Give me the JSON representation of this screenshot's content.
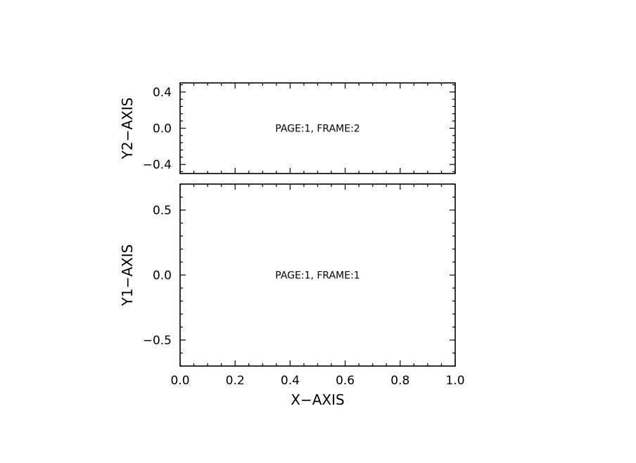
{
  "colors": {
    "background": "#ffffff",
    "axes": "#000000",
    "text": "#000000"
  },
  "chart_data": [
    {
      "type": "line",
      "frame": "top",
      "title": "",
      "xlabel": "",
      "ylabel": "Y2−AXIS",
      "xlim": [
        0.0,
        1.0
      ],
      "ylim": [
        -0.5,
        0.5
      ],
      "x_ticks": [
        0.0,
        0.2,
        0.4,
        0.6,
        0.8,
        1.0
      ],
      "x_tick_labels": [],
      "y_ticks": [
        -0.4,
        0.0,
        0.4
      ],
      "y_tick_labels": [
        "−0.4",
        "0.0",
        "0.4"
      ],
      "annotation": {
        "text": "PAGE:1, FRAME:2",
        "x": 0.5,
        "y": 0.0
      },
      "series": [],
      "grid": false
    },
    {
      "type": "line",
      "frame": "bottom",
      "title": "",
      "xlabel": "X−AXIS",
      "ylabel": "Y1−AXIS",
      "xlim": [
        0.0,
        1.0
      ],
      "ylim": [
        -0.7,
        0.7
      ],
      "x_ticks": [
        0.0,
        0.2,
        0.4,
        0.6,
        0.8,
        1.0
      ],
      "x_tick_labels": [
        "0.0",
        "0.2",
        "0.4",
        "0.6",
        "0.8",
        "1.0"
      ],
      "y_ticks": [
        -0.5,
        0.0,
        0.5
      ],
      "y_tick_labels": [
        "−0.5",
        "0.0",
        "0.5"
      ],
      "annotation": {
        "text": "PAGE:1, FRAME:1",
        "x": 0.5,
        "y": 0.0
      },
      "series": [],
      "grid": false
    }
  ]
}
